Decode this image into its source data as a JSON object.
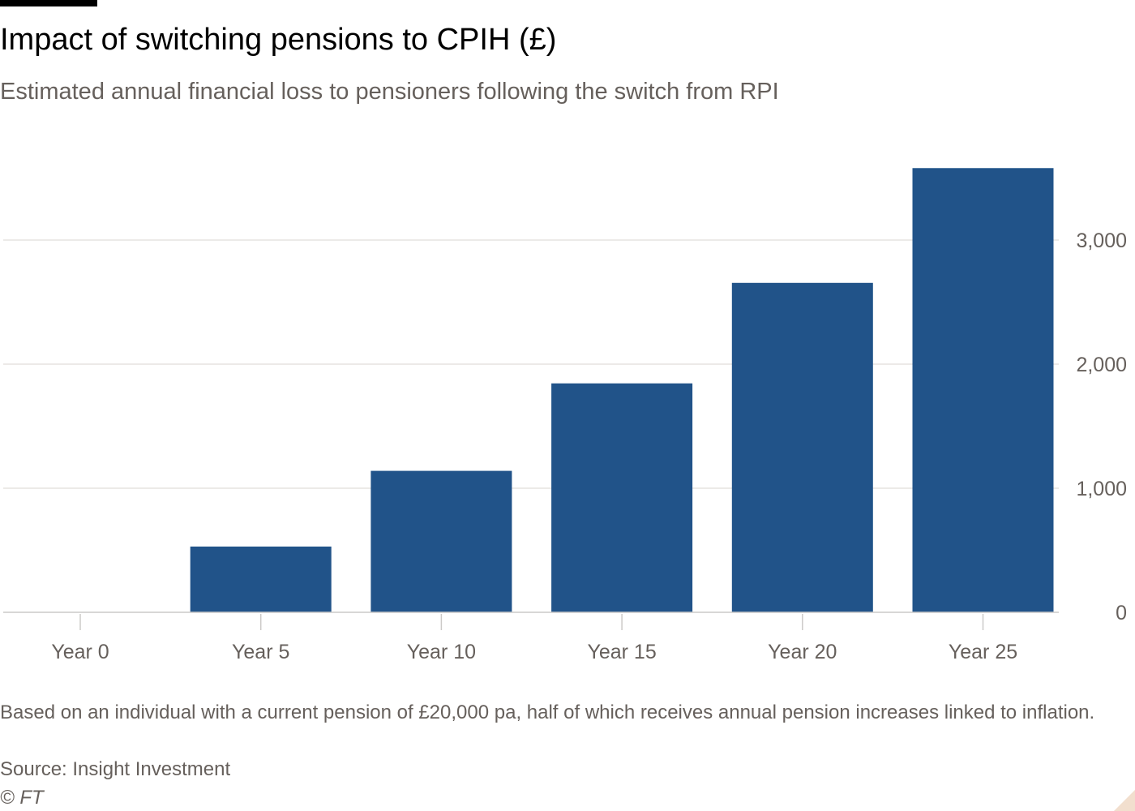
{
  "title": "Impact of switching pensions to CPIH (£)",
  "subtitle": "Estimated annual financial loss to pensioners following the switch from RPI",
  "footnote": "Based on an individual with a current pension of £20,000 pa, half of which receives annual pension increases linked to inflation.",
  "source": "Source: Insight Investment",
  "copyright": "© FT",
  "colors": {
    "bar": "#215389",
    "gridline": "#e6e3e0",
    "axis_text": "#66605c",
    "baseline": "#cccac8"
  },
  "chart_data": {
    "type": "bar",
    "categories": [
      "Year 0",
      "Year 5",
      "Year 10",
      "Year 15",
      "Year 20",
      "Year 25"
    ],
    "values": [
      0,
      530,
      1140,
      1845,
      2655,
      3580
    ],
    "ylim": [
      0,
      3600
    ],
    "yticks": [
      0,
      1000,
      2000,
      3000
    ],
    "ytick_labels": [
      "0",
      "1,000",
      "2,000",
      "3,000"
    ],
    "y_axis_position": "right",
    "grid": true,
    "xlabel": "",
    "ylabel": ""
  }
}
